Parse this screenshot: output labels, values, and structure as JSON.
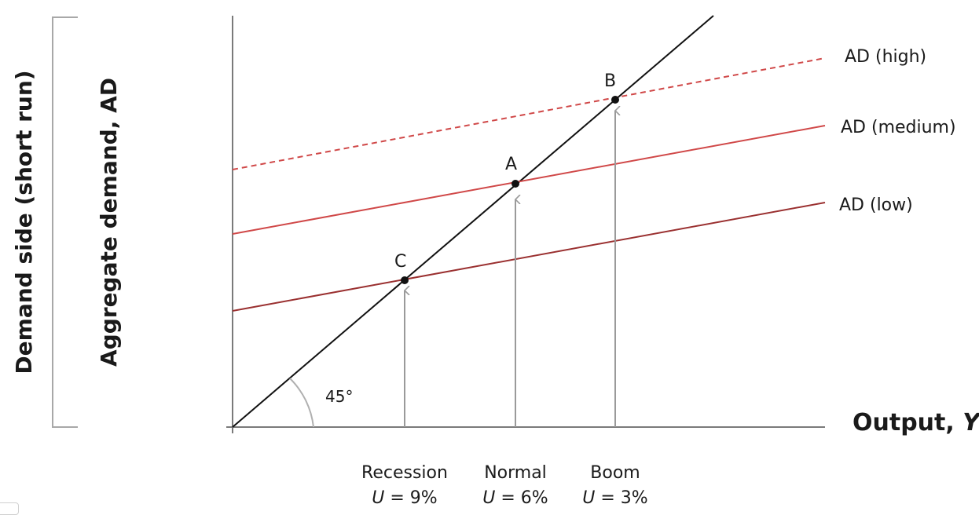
{
  "labels": {
    "outer_axis": "Demand side (short run)",
    "inner_axis": "Aggregate demand, AD",
    "x_axis": "Output, ",
    "x_axis_var": "Y",
    "angle": "45°"
  },
  "lines": [
    {
      "name": "AD (high)",
      "style": "dashed",
      "color": "#d04848"
    },
    {
      "name": "AD (medium)",
      "style": "solid",
      "color": "#d04848"
    },
    {
      "name": "AD (low)",
      "style": "solid",
      "color": "#9a3030"
    }
  ],
  "points": [
    {
      "label": "C",
      "state": "Recession",
      "u_var": "U",
      "u_value": " = 9%"
    },
    {
      "label": "A",
      "state": "Normal",
      "u_var": "U",
      "u_value": " = 6%"
    },
    {
      "label": "B",
      "state": "Boom",
      "u_var": "U",
      "u_value": " = 3%"
    }
  ]
}
